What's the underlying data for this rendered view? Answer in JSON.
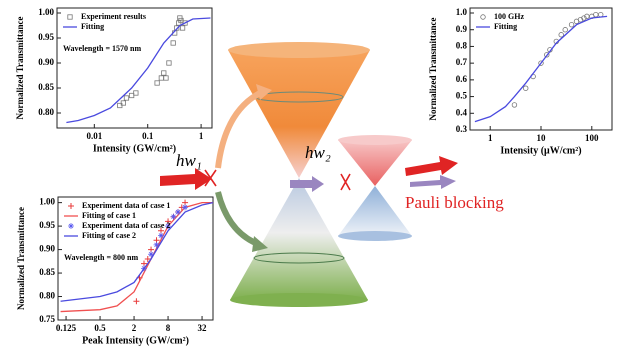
{
  "chart_data": [
    {
      "type": "scatter",
      "xscale": "log",
      "grid": false,
      "legend": "upper left",
      "xlabel": "Intensity (GW/cm²)",
      "ylabel": "Normalized Transmittance",
      "annotation": "Wavelength = 1570 nm",
      "xlim": [
        0.002,
        1.6
      ],
      "ylim": [
        0.77,
        1.01
      ],
      "xticks": [
        0.01,
        0.1,
        1
      ],
      "yticks": [
        {
          "value": 0.8,
          "label": "0.80"
        },
        {
          "value": 0.85,
          "label": "0.85"
        },
        {
          "value": 0.9,
          "label": "0.90"
        },
        {
          "value": 0.95,
          "label": "0.95"
        },
        {
          "value": 1,
          "label": "1.00"
        }
      ],
      "series": [
        {
          "name": "Experiment results",
          "style": "scatter",
          "marker": "square",
          "color": "#777777",
          "x": [
            0.03,
            0.035,
            0.04,
            0.05,
            0.06,
            0.15,
            0.18,
            0.2,
            0.22,
            0.25,
            0.3,
            0.32,
            0.35,
            0.38,
            0.4,
            0.42,
            0.45,
            0.5
          ],
          "values": [
            0.815,
            0.82,
            0.83,
            0.835,
            0.84,
            0.86,
            0.87,
            0.88,
            0.87,
            0.9,
            0.94,
            0.96,
            0.97,
            0.98,
            0.99,
            0.985,
            0.97,
            0.98
          ]
        },
        {
          "name": "Fitting",
          "style": "line",
          "color": "#4a4adf",
          "x": [
            0.003,
            0.005,
            0.01,
            0.02,
            0.05,
            0.1,
            0.2,
            0.4,
            0.7,
            1.5
          ],
          "values": [
            0.781,
            0.785,
            0.795,
            0.81,
            0.85,
            0.89,
            0.94,
            0.975,
            0.988,
            0.99
          ]
        }
      ]
    },
    {
      "type": "scatter",
      "xscale": "log",
      "grid": false,
      "legend": "upper left",
      "xlabel": "Intensity (μW/cm²)",
      "ylabel": "Normalized Transmittance",
      "xlim": [
        0.4,
        250
      ],
      "ylim": [
        0.3,
        1.03
      ],
      "xticks": [
        1,
        10,
        100
      ],
      "yticks": [
        0.3,
        0.4,
        0.5,
        0.6,
        0.7,
        0.8,
        0.9,
        {
          "value": 1,
          "label": "1.0"
        }
      ],
      "series": [
        {
          "name": "100 GHz",
          "style": "scatter",
          "marker": "circle",
          "color": "#777777",
          "x": [
            3,
            5,
            7,
            10,
            13,
            15,
            20,
            25,
            30,
            40,
            50,
            60,
            70,
            80,
            100,
            120,
            150
          ],
          "values": [
            0.45,
            0.55,
            0.62,
            0.7,
            0.75,
            0.78,
            0.83,
            0.87,
            0.9,
            0.93,
            0.95,
            0.96,
            0.97,
            0.98,
            0.98,
            0.99,
            0.99
          ]
        },
        {
          "name": "Fitting",
          "style": "line",
          "color": "#4a4adf",
          "x": [
            0.5,
            1,
            2,
            3,
            5,
            10,
            20,
            50,
            100,
            200
          ],
          "values": [
            0.35,
            0.38,
            0.44,
            0.5,
            0.58,
            0.7,
            0.82,
            0.93,
            0.97,
            0.98
          ]
        }
      ]
    },
    {
      "type": "scatter",
      "xscale": "log",
      "grid": false,
      "legend": "upper left",
      "xlabel": "Peak Intensity (GW/cm²)",
      "ylabel": "Normalized Transmittance",
      "annotation": "Wavelength = 800 nm",
      "xlim": [
        0.09,
        50
      ],
      "ylim": [
        0.75,
        1.012
      ],
      "xticks": [
        0.125,
        0.5,
        2,
        8,
        32
      ],
      "yticks": [
        {
          "value": 0.75,
          "label": "0.75"
        },
        {
          "value": 0.8,
          "label": "0.80"
        },
        {
          "value": 0.85,
          "label": "0.85"
        },
        {
          "value": 0.9,
          "label": "0.90"
        },
        {
          "value": 0.95,
          "label": "0.95"
        },
        {
          "value": 1,
          "label": "1.00"
        }
      ],
      "series": [
        {
          "name": "Experiment data of case 1",
          "style": "scatter",
          "marker": "cross",
          "color": "#e83a3a",
          "x": [
            2.2,
            2.5,
            3,
            3.5,
            4,
            5,
            6,
            8,
            10,
            12,
            14,
            16
          ],
          "values": [
            0.79,
            0.84,
            0.87,
            0.88,
            0.9,
            0.92,
            0.94,
            0.96,
            0.97,
            0.98,
            0.99,
            1.0
          ]
        },
        {
          "name": "Fitting of case 1",
          "style": "line",
          "color": "#f05050",
          "x": [
            0.1,
            0.5,
            1,
            2,
            4,
            8,
            16,
            32,
            50
          ],
          "values": [
            0.768,
            0.772,
            0.78,
            0.81,
            0.88,
            0.95,
            0.99,
            1.0,
            1.0
          ]
        },
        {
          "name": "Experiment data of case 2",
          "style": "scatter",
          "marker": "star",
          "color": "#5a5af0",
          "x": [
            3,
            4,
            5,
            6,
            8,
            10,
            12,
            16
          ],
          "values": [
            0.86,
            0.89,
            0.91,
            0.93,
            0.95,
            0.97,
            0.98,
            0.99
          ]
        },
        {
          "name": "Fitting of case 2",
          "style": "line",
          "color": "#4a4adf",
          "x": [
            0.1,
            0.5,
            1,
            2,
            4,
            8,
            16,
            32,
            50
          ],
          "values": [
            0.79,
            0.8,
            0.81,
            0.83,
            0.88,
            0.94,
            0.98,
            0.995,
            1.0
          ]
        }
      ]
    }
  ],
  "diagram": {
    "photon_1": "hw₁",
    "photon_2": "hw₂",
    "label": "Pauli blocking"
  }
}
